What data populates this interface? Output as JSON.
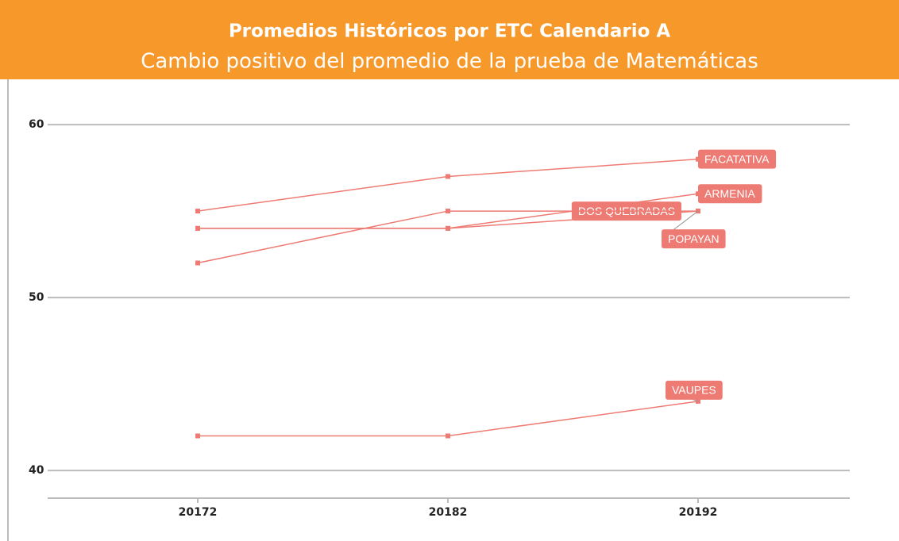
{
  "chart_data": {
    "type": "line",
    "title": "Promedios Históricos por ETC Calendario A",
    "subtitle": "Cambio positivo del promedio de la prueba de Matemáticas",
    "categories": [
      "20172",
      "20182",
      "20192"
    ],
    "series": [
      {
        "name": "FACATATIVA",
        "color": "#ee7b73",
        "values": [
          55,
          57,
          58
        ]
      },
      {
        "name": "ARMENIA",
        "color": "#ee7b73",
        "values": [
          54,
          54,
          56
        ]
      },
      {
        "name": "DOS QUEBRADAS",
        "color": "#ee7b73",
        "values": [
          54,
          54,
          55
        ]
      },
      {
        "name": "POPAYAN",
        "color": "#ee7b73",
        "values": [
          52,
          55,
          55
        ]
      },
      {
        "name": "VAUPES",
        "color": "#ee7b73",
        "values": [
          42,
          42,
          44
        ]
      }
    ],
    "ylim": [
      38.4,
      61.7
    ],
    "yticks": [
      40,
      50,
      60
    ],
    "grid": true
  }
}
